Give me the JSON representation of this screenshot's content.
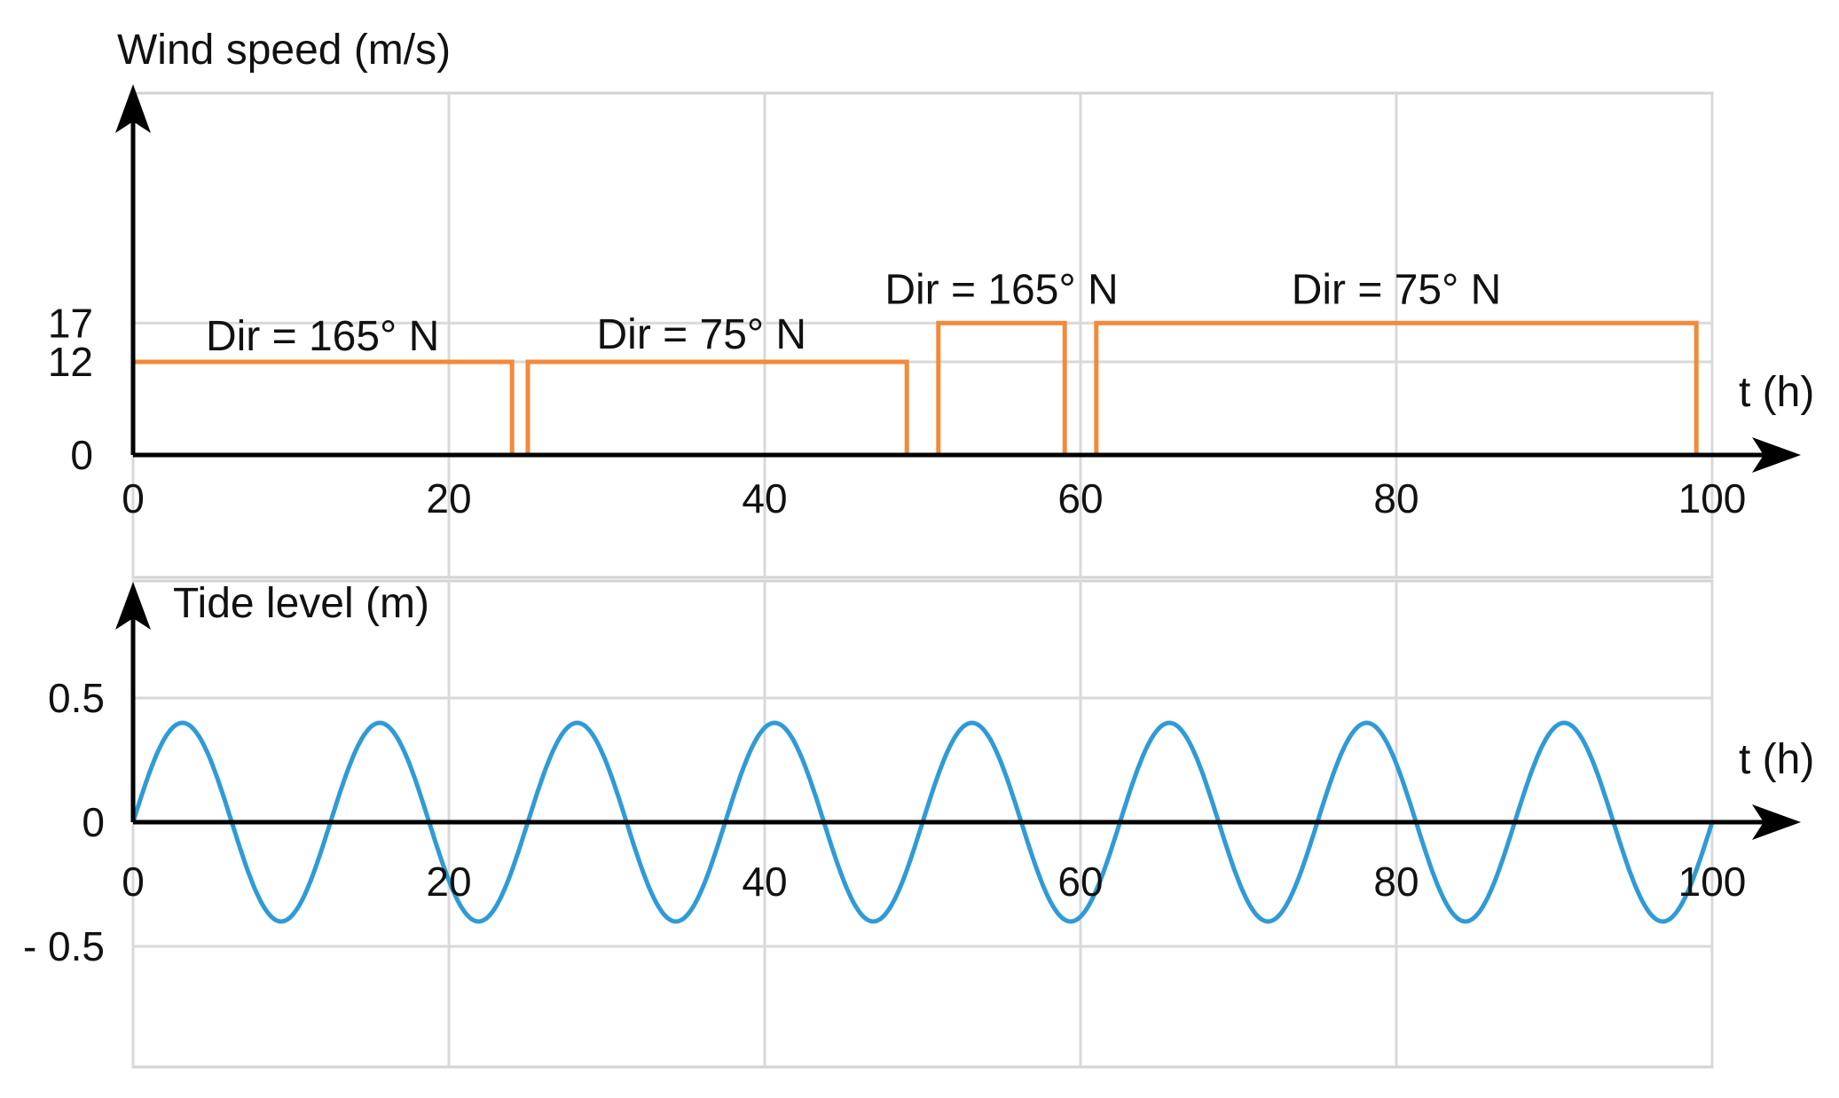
{
  "chart_data": [
    {
      "type": "line",
      "ylabel": "Wind speed (m/s)",
      "xlabel": "t (h)",
      "xlim": [
        0,
        100
      ],
      "x_ticks": [
        "0",
        "20",
        "40",
        "60",
        "80",
        "100"
      ],
      "y_ticks": [
        "0",
        "12",
        "17"
      ],
      "grid": true,
      "series": [
        {
          "color": "#f28a3a",
          "x": [
            0,
            24,
            24,
            25,
            25,
            49,
            49,
            51,
            51,
            59,
            59,
            61,
            61,
            99,
            99
          ],
          "y": [
            12,
            12,
            0,
            0,
            12,
            12,
            0,
            0,
            17,
            17,
            0,
            0,
            17,
            17,
            0
          ]
        }
      ],
      "annotations": [
        {
          "text": "Dir = 165° N",
          "x": 12,
          "y": 13.5
        },
        {
          "text": "Dir = 75° N",
          "x": 36,
          "y": 13.7
        },
        {
          "text": "Dir = 165° N",
          "x": 55,
          "y": 19.5
        },
        {
          "text": "Dir = 75° N",
          "x": 80,
          "y": 19.5
        }
      ]
    },
    {
      "type": "line",
      "ylabel": "Tide level (m)",
      "xlabel": "t (h)",
      "xlim": [
        0,
        100
      ],
      "x_ticks": [
        "0",
        "20",
        "40",
        "60",
        "80",
        "100"
      ],
      "y_ticks": [
        "0.5",
        "0",
        "- 0.5"
      ],
      "grid": true,
      "series": [
        {
          "color": "#2f9bd6",
          "function": "sine",
          "amplitude": 0.4,
          "period_h": 12.5,
          "x_range": [
            0,
            100
          ]
        }
      ]
    }
  ]
}
